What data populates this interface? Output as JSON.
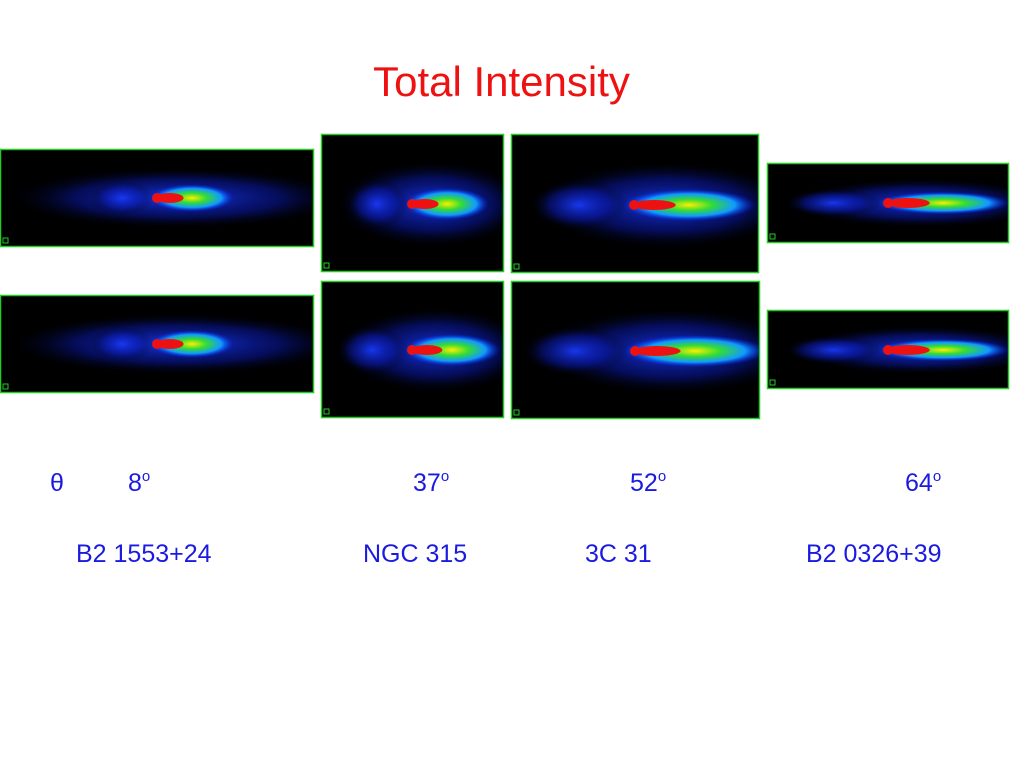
{
  "title": "Total Intensity",
  "angle_label": "θ",
  "columns": [
    {
      "angle": "8",
      "degree": "o",
      "name": "B2 1553+24"
    },
    {
      "angle": "37",
      "degree": "o",
      "name": "NGC 315"
    },
    {
      "angle": "52",
      "degree": "o",
      "name": "3C 31"
    },
    {
      "angle": "64",
      "degree": "o",
      "name": "B2 0326+39"
    }
  ]
}
